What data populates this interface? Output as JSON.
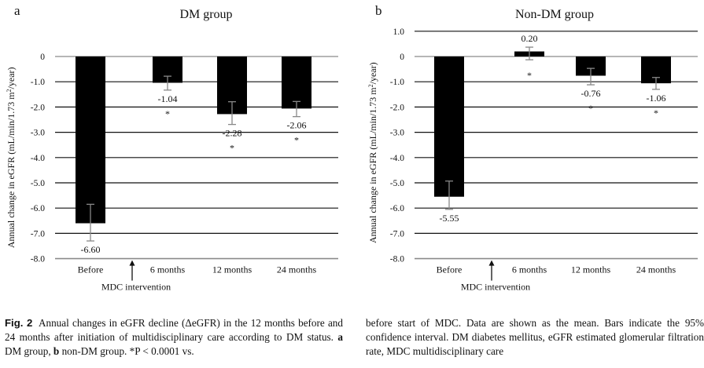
{
  "chart_data": [
    {
      "type": "bar",
      "panel_label": "a",
      "title": "DM group",
      "xlabel": "",
      "ylabel": "Annual change in eGFR (mL/min/1.73 m²/year)",
      "ylim": [
        -8.0,
        0
      ],
      "yticks": [
        0,
        -1.0,
        -2.0,
        -3.0,
        -4.0,
        -5.0,
        -6.0,
        -7.0,
        -8.0
      ],
      "ytick_labels": [
        "0",
        "-1.0",
        "-2.0",
        "-3.0",
        "-4.0",
        "-5.0",
        "-6.0",
        "-7.0",
        "-8.0"
      ],
      "grid": true,
      "categories": [
        "Before",
        "6 months",
        "12 months",
        "24 months"
      ],
      "values": [
        -6.6,
        -1.04,
        -2.28,
        -2.06
      ],
      "value_labels": [
        "-6.60",
        "-1.04",
        "-2.28",
        "-2.06"
      ],
      "ci_upper": [
        -5.85,
        -0.78,
        -1.79,
        -1.78
      ],
      "ci_lower": [
        -7.3,
        -1.33,
        -2.69,
        -2.38
      ],
      "significance": [
        "",
        "*",
        "*",
        "*"
      ],
      "annotation": "MDC intervention",
      "bar_color": "#000000",
      "errorbar_color": "#888888"
    },
    {
      "type": "bar",
      "panel_label": "b",
      "title": "Non-DM group",
      "xlabel": "",
      "ylabel": "Annual change in eGFR (mL/min/1.73 m²/year)",
      "ylim": [
        -8.0,
        1.0
      ],
      "yticks": [
        1.0,
        0,
        -1.0,
        -2.0,
        -3.0,
        -4.0,
        -5.0,
        -6.0,
        -7.0,
        -8.0
      ],
      "ytick_labels": [
        "1.0",
        "0",
        "-1.0",
        "-2.0",
        "-3.0",
        "-4.0",
        "-5.0",
        "-6.0",
        "-7.0",
        "-8.0"
      ],
      "grid": true,
      "categories": [
        "Before",
        "6 months",
        "12 months",
        "24 months"
      ],
      "values": [
        -5.55,
        0.2,
        -0.76,
        -1.06
      ],
      "value_labels": [
        "-5.55",
        "0.20",
        "-0.76",
        "-1.06"
      ],
      "ci_upper": [
        -4.93,
        0.37,
        -0.47,
        -0.83
      ],
      "ci_lower": [
        -6.05,
        -0.13,
        -1.12,
        -1.3
      ],
      "significance": [
        "",
        "*",
        "*",
        "*"
      ],
      "annotation": "MDC intervention",
      "bar_color": "#000000",
      "errorbar_color": "#888888"
    }
  ],
  "caption": {
    "fig_label": "Fig. 2",
    "left_text": "Annual changes in eGFR decline (ΔeGFR) in the 12 months before and 24 months after initiation of multidisciplinary care according to DM status.",
    "left_a": "a",
    "left_a_text": "DM group,",
    "left_b": "b",
    "left_b_text": "non-DM group. *P < 0.0001 vs.",
    "right_text": "before start of MDC. Data are shown as the mean. Bars indicate the 95% confidence interval. DM diabetes mellitus, eGFR estimated glomerular filtration rate, MDC multidisciplinary care"
  }
}
